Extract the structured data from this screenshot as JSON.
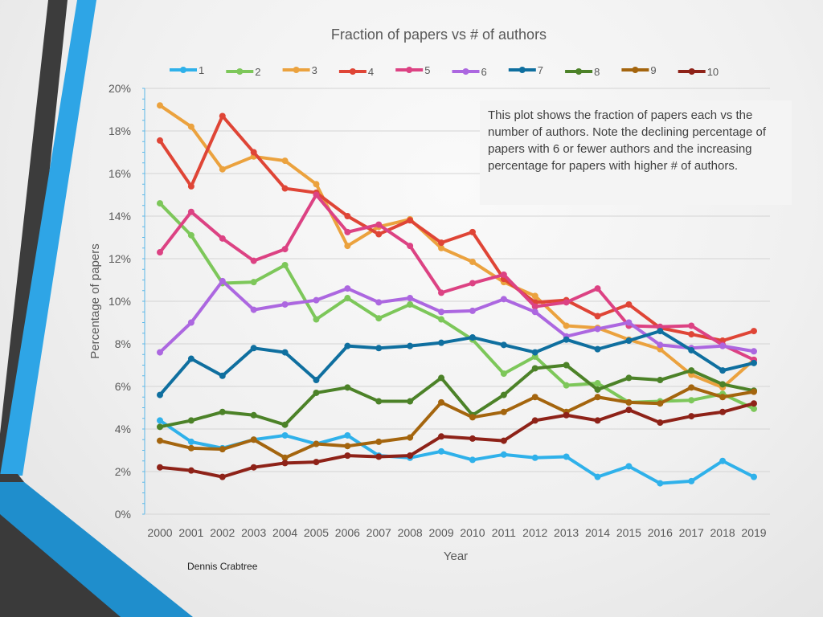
{
  "author": "Dennis Crabtree",
  "note": "This plot shows the fraction of papers each vs the number of authors. Note the declining percentage of papers with 6 or fewer authors and the increasing percentage for papers with higher # of authors.",
  "chart_data": {
    "type": "line",
    "title": "Fraction of papers vs # of authors",
    "xlabel": "Year",
    "ylabel": "Percentage of papers",
    "ylim": [
      0,
      20
    ],
    "yticks": [
      "0%",
      "2%",
      "4%",
      "6%",
      "8%",
      "10%",
      "12%",
      "14%",
      "16%",
      "18%",
      "20%"
    ],
    "grid": true,
    "legend": "top",
    "x": [
      "2000",
      "2001",
      "2002",
      "2003",
      "2004",
      "2005",
      "2006",
      "2007",
      "2008",
      "2009",
      "2010",
      "2011",
      "2012",
      "2013",
      "2014",
      "2015",
      "2016",
      "2017",
      "2018",
      "2019"
    ],
    "series": [
      {
        "name": "1",
        "color": "#2fb1ea",
        "values": [
          4.4,
          3.4,
          3.1,
          3.5,
          3.7,
          3.3,
          3.7,
          2.75,
          2.65,
          2.95,
          2.55,
          2.8,
          2.65,
          2.7,
          1.75,
          2.25,
          1.45,
          1.55,
          2.5,
          1.75
        ]
      },
      {
        "name": "2",
        "color": "#7dc75a",
        "values": [
          14.6,
          13.1,
          10.85,
          10.9,
          11.7,
          9.15,
          10.15,
          9.2,
          9.85,
          9.15,
          8.2,
          6.6,
          7.4,
          6.05,
          6.15,
          5.25,
          5.3,
          5.35,
          5.65,
          4.95
        ]
      },
      {
        "name": "3",
        "color": "#eba23e",
        "values": [
          19.2,
          18.2,
          16.2,
          16.8,
          16.6,
          15.5,
          12.6,
          13.5,
          13.85,
          12.5,
          11.85,
          10.9,
          10.25,
          8.85,
          8.75,
          8.2,
          7.75,
          6.55,
          5.95,
          7.25
        ]
      },
      {
        "name": "4",
        "color": "#df4536",
        "values": [
          17.55,
          15.4,
          18.7,
          17.0,
          15.3,
          15.1,
          14.0,
          13.15,
          13.8,
          12.75,
          13.25,
          11.05,
          9.95,
          10.05,
          9.3,
          9.85,
          8.75,
          8.45,
          8.15,
          8.6
        ]
      },
      {
        "name": "5",
        "color": "#dc4283",
        "values": [
          12.3,
          14.2,
          12.95,
          11.9,
          12.45,
          15.0,
          13.25,
          13.6,
          12.6,
          10.4,
          10.85,
          11.25,
          9.75,
          9.95,
          10.6,
          8.85,
          8.8,
          8.85,
          7.95,
          7.25
        ]
      },
      {
        "name": "6",
        "color": "#ac67e0",
        "values": [
          7.6,
          9.0,
          10.95,
          9.6,
          9.85,
          10.05,
          10.6,
          9.95,
          10.15,
          9.5,
          9.55,
          10.1,
          9.5,
          8.35,
          8.7,
          9.0,
          7.95,
          7.8,
          7.9,
          7.65
        ]
      },
      {
        "name": "7",
        "color": "#0f6f9f",
        "values": [
          5.6,
          7.3,
          6.5,
          7.8,
          7.6,
          6.3,
          7.9,
          7.8,
          7.9,
          8.05,
          8.3,
          7.95,
          7.6,
          8.2,
          7.75,
          8.15,
          8.6,
          7.7,
          6.75,
          7.1
        ]
      },
      {
        "name": "8",
        "color": "#4c8228",
        "values": [
          4.1,
          4.4,
          4.8,
          4.65,
          4.2,
          5.7,
          5.95,
          5.3,
          5.3,
          6.4,
          4.65,
          5.6,
          6.85,
          7.0,
          5.85,
          6.4,
          6.3,
          6.75,
          6.1,
          5.8
        ]
      },
      {
        "name": "9",
        "color": "#a4650e",
        "values": [
          3.45,
          3.1,
          3.05,
          3.5,
          2.65,
          3.3,
          3.2,
          3.4,
          3.6,
          5.25,
          4.55,
          4.8,
          5.5,
          4.8,
          5.5,
          5.25,
          5.2,
          5.95,
          5.5,
          5.75
        ]
      },
      {
        "name": "10",
        "color": "#8e2218",
        "values": [
          2.2,
          2.05,
          1.75,
          2.2,
          2.4,
          2.45,
          2.75,
          2.7,
          2.75,
          3.65,
          3.55,
          3.45,
          4.4,
          4.65,
          4.4,
          4.9,
          4.3,
          4.6,
          4.8,
          5.2
        ]
      }
    ]
  }
}
